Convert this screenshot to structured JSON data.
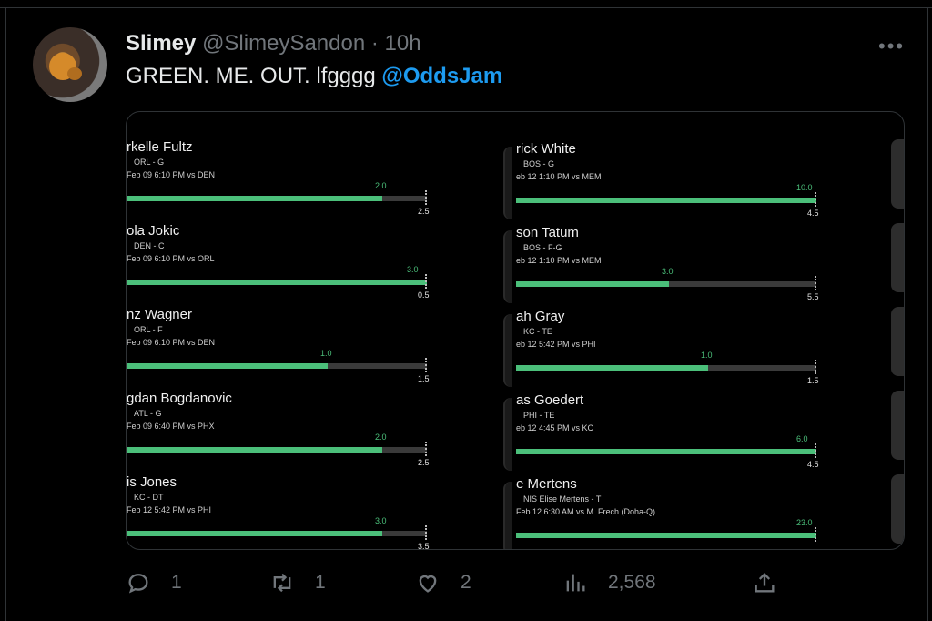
{
  "tweet": {
    "display_name": "Slimey",
    "handle": "@SlimeySandon",
    "separator": "·",
    "time": "10h",
    "more_label": "•••",
    "text_plain": "GREEN. ME. OUT. lfgggg ",
    "mention": "@OddsJam"
  },
  "media": {
    "left_cards": [
      {
        "name": "rkelle Fultz",
        "team": "ORL - G",
        "game": "Feb 09 6:10 PM  vs DEN",
        "actual": "2.0",
        "line": "2.5",
        "progress": 0.85
      },
      {
        "name": "ola Jokic",
        "team": "DEN - C",
        "game": "Feb 09 6:10 PM  vs ORL",
        "actual": "3.0",
        "line": "0.5",
        "progress": 1.0
      },
      {
        "name": "nz Wagner",
        "team": "ORL - F",
        "game": "Feb 09 6:10 PM  vs DEN",
        "actual": "1.0",
        "line": "1.5",
        "progress": 0.67
      },
      {
        "name": "gdan Bogdanovic",
        "team": "ATL - G",
        "game": "Feb 09 6:40 PM  vs PHX",
        "actual": "2.0",
        "line": "2.5",
        "progress": 0.85
      },
      {
        "name": "is Jones",
        "team": "KC - DT",
        "game": "Feb 12 5:42 PM  vs PHI",
        "actual": "3.0",
        "line": "3.5",
        "progress": 0.85
      }
    ],
    "right_cards": [
      {
        "name": "rick White",
        "team": "BOS - G",
        "game": "eb 12 1:10 PM  vs MEM",
        "actual": "10.0",
        "line": "4.5",
        "progress": 1.0
      },
      {
        "name": "son Tatum",
        "team": "BOS - F-G",
        "game": "eb 12 1:10 PM  vs MEM",
        "actual": "3.0",
        "line": "5.5",
        "progress": 0.51
      },
      {
        "name": "ah Gray",
        "team": "KC - TE",
        "game": "eb 12 5:42 PM  vs PHI",
        "actual": "1.0",
        "line": "1.5",
        "progress": 0.64
      },
      {
        "name": "as Goedert",
        "team": "PHI - TE",
        "game": "eb 12 4:45 PM  vs KC",
        "actual": "6.0",
        "line": "4.5",
        "progress": 1.0
      },
      {
        "name": "e Mertens",
        "team": "NIS  Elise Mertens - T",
        "game": "Feb 12 6:30 AM  vs M. Frech (Doha-Q)",
        "actual": "23.0",
        "line": "",
        "progress": 1.0
      }
    ]
  },
  "actions": {
    "reply_count": "1",
    "retweet_count": "1",
    "like_count": "2",
    "views_count": "2,568"
  },
  "colors": {
    "accent_blue": "#1d9bf0",
    "bar_green": "#4bbf7a",
    "muted": "#71767b"
  }
}
